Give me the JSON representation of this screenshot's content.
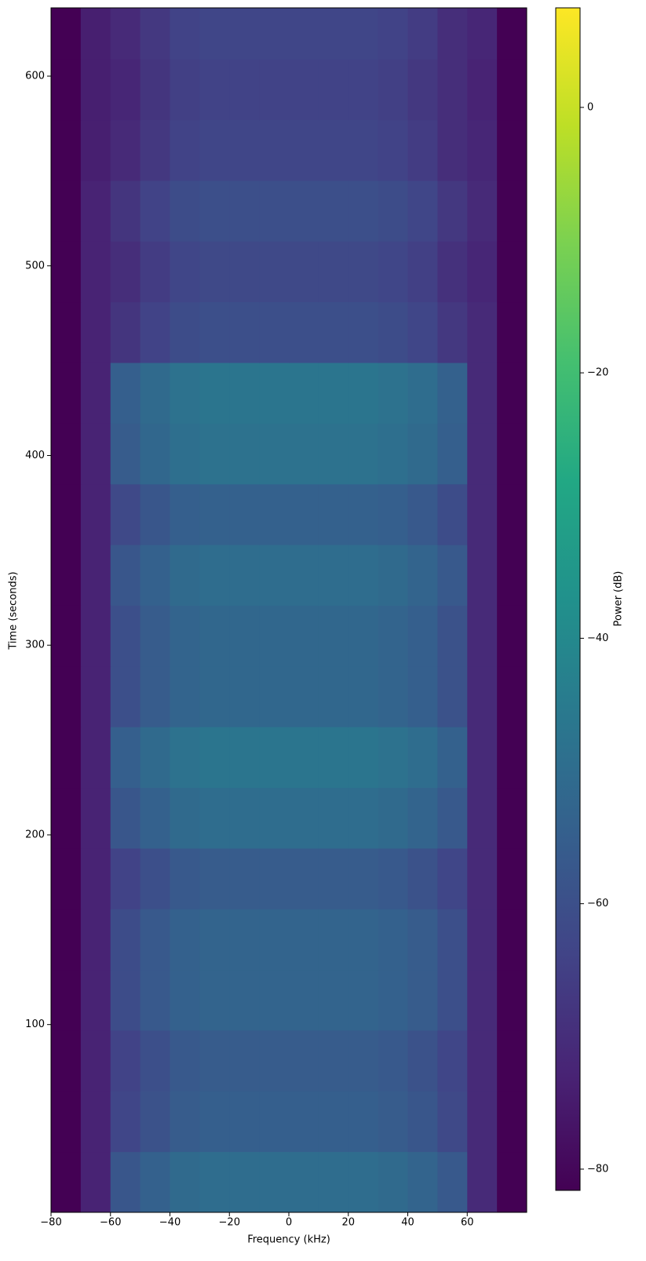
{
  "chart_data": {
    "type": "heatmap",
    "xlabel": "Frequency (kHz)",
    "ylabel": "Time (seconds)",
    "colorbar_label": "Power (dB)",
    "colormap": "viridis",
    "xlim": [
      -80,
      80
    ],
    "ylim": [
      1,
      636
    ],
    "zlim": [
      -81.6,
      7.5
    ],
    "xticks": [
      {
        "value": -80,
        "label": "−80"
      },
      {
        "value": -60,
        "label": "−60"
      },
      {
        "value": -40,
        "label": "−40"
      },
      {
        "value": -20,
        "label": "−20"
      },
      0,
      20,
      40,
      60
    ],
    "yticks": [
      100,
      200,
      300,
      400,
      500,
      600
    ],
    "zticks": [
      {
        "value": -80,
        "label": "−80"
      },
      {
        "value": -60,
        "label": "−60"
      },
      {
        "value": -40,
        "label": "−40"
      },
      {
        "value": -20,
        "label": "−20"
      },
      0
    ],
    "xbins": [
      -80,
      -70,
      -60,
      -50,
      -40,
      -30,
      -20,
      -10,
      0,
      10,
      20,
      30,
      40,
      50,
      60,
      70,
      80
    ],
    "ybins": [
      1,
      33,
      65,
      97,
      129,
      161,
      193,
      225,
      257,
      289,
      321,
      353,
      385,
      417,
      449,
      481,
      513,
      545,
      577,
      609,
      636
    ],
    "z": [
      [
        -82,
        -73,
        -58,
        -54,
        -51,
        -50,
        -50,
        -50,
        -50,
        -50,
        -50,
        -51,
        -53,
        -57,
        -71,
        -82
      ],
      [
        -82,
        -73,
        -63,
        -59,
        -56,
        -55,
        -55,
        -55,
        -55,
        -55,
        -55,
        -56,
        -58,
        -62,
        -71,
        -82
      ],
      [
        -82,
        -73,
        -64,
        -60,
        -57,
        -56,
        -56,
        -56,
        -56,
        -56,
        -56,
        -57,
        -59,
        -63,
        -71,
        -82
      ],
      [
        -82,
        -73,
        -61,
        -57,
        -54,
        -53,
        -53,
        -53,
        -53,
        -53,
        -53,
        -54,
        -56,
        -60,
        -71,
        -82
      ],
      [
        -82,
        -73,
        -61,
        -57,
        -54,
        -53,
        -53,
        -53,
        -53,
        -53,
        -53,
        -54,
        -56,
        -60,
        -71,
        -82
      ],
      [
        -82,
        -73,
        -64,
        -60,
        -57,
        -56,
        -56,
        -56,
        -56,
        -56,
        -56,
        -57,
        -59,
        -63,
        -71,
        -82
      ],
      [
        -82,
        -73,
        -58,
        -54,
        -51,
        -50,
        -50,
        -50,
        -50,
        -50,
        -50,
        -51,
        -53,
        -57,
        -71,
        -82
      ],
      [
        -82,
        -73,
        -55,
        -51,
        -48,
        -47,
        -47,
        -47,
        -47,
        -47,
        -47,
        -48,
        -50,
        -54,
        -71,
        -82
      ],
      [
        -82,
        -73,
        -60,
        -56,
        -53,
        -52,
        -52,
        -52,
        -52,
        -52,
        -52,
        -53,
        -55,
        -59,
        -71,
        -82
      ],
      [
        -82,
        -73,
        -60,
        -56,
        -53,
        -52,
        -52,
        -52,
        -52,
        -52,
        -52,
        -53,
        -55,
        -59,
        -71,
        -82
      ],
      [
        -82,
        -73,
        -58,
        -54,
        -51,
        -50,
        -50,
        -50,
        -50,
        -50,
        -50,
        -51,
        -53,
        -57,
        -71,
        -82
      ],
      [
        -82,
        -73,
        -62,
        -58,
        -55,
        -54,
        -54,
        -54,
        -54,
        -54,
        -54,
        -55,
        -57,
        -61,
        -71,
        -82
      ],
      [
        -82,
        -73,
        -56,
        -52,
        -49,
        -48,
        -48,
        -48,
        -48,
        -48,
        -48,
        -49,
        -51,
        -55,
        -71,
        -82
      ],
      [
        -82,
        -73,
        -55,
        -51,
        -48,
        -47,
        -47,
        -47,
        -47,
        -47,
        -47,
        -48,
        -50,
        -54,
        -71,
        -82
      ],
      [
        -82,
        -73,
        -68,
        -64,
        -61,
        -60,
        -60,
        -60,
        -60,
        -60,
        -60,
        -61,
        -63,
        -67,
        -71,
        -82
      ],
      [
        -82,
        -73,
        -70,
        -66,
        -63,
        -62,
        -62,
        -62,
        -62,
        -62,
        -62,
        -63,
        -65,
        -69,
        -72,
        -82
      ],
      [
        -82,
        -73,
        -68,
        -64,
        -61,
        -60,
        -60,
        -60,
        -60,
        -60,
        -60,
        -61,
        -63,
        -67,
        -71,
        -82
      ],
      [
        -82,
        -74,
        -71,
        -67,
        -64,
        -63,
        -63,
        -63,
        -63,
        -63,
        -63,
        -64,
        -66,
        -70,
        -72,
        -82
      ],
      [
        -82,
        -74,
        -72,
        -68,
        -65,
        -64,
        -64,
        -64,
        -64,
        -64,
        -64,
        -65,
        -67,
        -70,
        -73,
        -82
      ],
      [
        -82,
        -74,
        -71,
        -67,
        -64,
        -63,
        -63,
        -63,
        -63,
        -63,
        -63,
        -64,
        -66,
        -70,
        -72,
        -82
      ]
    ]
  }
}
